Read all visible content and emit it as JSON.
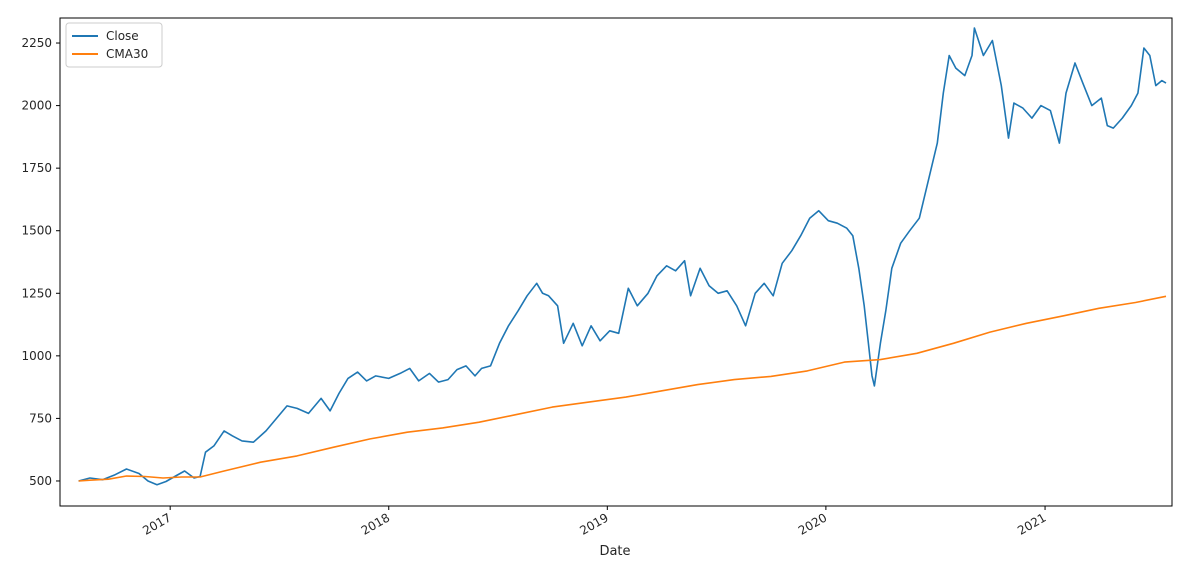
{
  "chart_data": {
    "type": "line",
    "title": "",
    "xlabel": "Date",
    "ylabel": "",
    "xlim": [
      "2016-07-01",
      "2021-08-01"
    ],
    "ylim": [
      400,
      2350
    ],
    "x_ticks": [
      "2017",
      "2018",
      "2019",
      "2020",
      "2021"
    ],
    "y_ticks": [
      500,
      750,
      1000,
      1250,
      1500,
      1750,
      2000,
      2250
    ],
    "grid": false,
    "legend": "top-left",
    "series": [
      {
        "name": "Close",
        "color": "#1f77b4",
        "points": [
          [
            "2016-08-01",
            500
          ],
          [
            "2016-08-20",
            512
          ],
          [
            "2016-09-10",
            505
          ],
          [
            "2016-10-01",
            525
          ],
          [
            "2016-10-20",
            548
          ],
          [
            "2016-11-10",
            530
          ],
          [
            "2016-11-25",
            500
          ],
          [
            "2016-12-10",
            485
          ],
          [
            "2016-12-25",
            498
          ],
          [
            "2017-01-10",
            520
          ],
          [
            "2017-01-25",
            540
          ],
          [
            "2017-02-10",
            512
          ],
          [
            "2017-02-20",
            518
          ],
          [
            "2017-03-01",
            615
          ],
          [
            "2017-03-15",
            640
          ],
          [
            "2017-04-01",
            700
          ],
          [
            "2017-04-15",
            680
          ],
          [
            "2017-05-01",
            660
          ],
          [
            "2017-05-20",
            655
          ],
          [
            "2017-06-10",
            700
          ],
          [
            "2017-07-01",
            760
          ],
          [
            "2017-07-15",
            800
          ],
          [
            "2017-08-01",
            790
          ],
          [
            "2017-08-20",
            770
          ],
          [
            "2017-09-10",
            830
          ],
          [
            "2017-09-25",
            780
          ],
          [
            "2017-10-10",
            850
          ],
          [
            "2017-10-25",
            910
          ],
          [
            "2017-11-10",
            935
          ],
          [
            "2017-11-25",
            900
          ],
          [
            "2017-12-10",
            920
          ],
          [
            "2018-01-01",
            910
          ],
          [
            "2018-01-20",
            930
          ],
          [
            "2018-02-05",
            950
          ],
          [
            "2018-02-20",
            900
          ],
          [
            "2018-03-10",
            930
          ],
          [
            "2018-03-25",
            895
          ],
          [
            "2018-04-10",
            905
          ],
          [
            "2018-04-25",
            945
          ],
          [
            "2018-05-10",
            960
          ],
          [
            "2018-05-25",
            920
          ],
          [
            "2018-06-05",
            950
          ],
          [
            "2018-06-20",
            960
          ],
          [
            "2018-07-05",
            1050
          ],
          [
            "2018-07-20",
            1120
          ],
          [
            "2018-08-05",
            1180
          ],
          [
            "2018-08-20",
            1240
          ],
          [
            "2018-09-05",
            1290
          ],
          [
            "2018-09-15",
            1250
          ],
          [
            "2018-09-25",
            1240
          ],
          [
            "2018-10-10",
            1200
          ],
          [
            "2018-10-20",
            1050
          ],
          [
            "2018-11-05",
            1130
          ],
          [
            "2018-11-20",
            1040
          ],
          [
            "2018-12-05",
            1120
          ],
          [
            "2018-12-20",
            1060
          ],
          [
            "2019-01-05",
            1100
          ],
          [
            "2019-01-20",
            1090
          ],
          [
            "2019-02-05",
            1270
          ],
          [
            "2019-02-20",
            1200
          ],
          [
            "2019-03-10",
            1250
          ],
          [
            "2019-03-25",
            1320
          ],
          [
            "2019-04-10",
            1360
          ],
          [
            "2019-04-25",
            1340
          ],
          [
            "2019-05-10",
            1380
          ],
          [
            "2019-05-20",
            1240
          ],
          [
            "2019-06-05",
            1350
          ],
          [
            "2019-06-20",
            1280
          ],
          [
            "2019-07-05",
            1250
          ],
          [
            "2019-07-20",
            1260
          ],
          [
            "2019-08-05",
            1200
          ],
          [
            "2019-08-20",
            1120
          ],
          [
            "2019-09-05",
            1250
          ],
          [
            "2019-09-20",
            1290
          ],
          [
            "2019-10-05",
            1240
          ],
          [
            "2019-10-20",
            1370
          ],
          [
            "2019-11-05",
            1420
          ],
          [
            "2019-11-20",
            1480
          ],
          [
            "2019-12-05",
            1550
          ],
          [
            "2019-12-20",
            1580
          ],
          [
            "2020-01-05",
            1540
          ],
          [
            "2020-01-20",
            1530
          ],
          [
            "2020-02-05",
            1510
          ],
          [
            "2020-02-15",
            1480
          ],
          [
            "2020-02-25",
            1350
          ],
          [
            "2020-03-05",
            1200
          ],
          [
            "2020-03-12",
            1050
          ],
          [
            "2020-03-18",
            920
          ],
          [
            "2020-03-22",
            880
          ],
          [
            "2020-04-01",
            1050
          ],
          [
            "2020-04-10",
            1180
          ],
          [
            "2020-04-20",
            1350
          ],
          [
            "2020-05-05",
            1450
          ],
          [
            "2020-05-20",
            1500
          ],
          [
            "2020-06-05",
            1550
          ],
          [
            "2020-06-20",
            1700
          ],
          [
            "2020-07-05",
            1850
          ],
          [
            "2020-07-15",
            2050
          ],
          [
            "2020-07-25",
            2200
          ],
          [
            "2020-08-05",
            2150
          ],
          [
            "2020-08-20",
            2120
          ],
          [
            "2020-09-01",
            2200
          ],
          [
            "2020-09-05",
            2310
          ],
          [
            "2020-09-20",
            2200
          ],
          [
            "2020-10-05",
            2260
          ],
          [
            "2020-10-20",
            2080
          ],
          [
            "2020-11-01",
            1870
          ],
          [
            "2020-11-10",
            2010
          ],
          [
            "2020-11-25",
            1990
          ],
          [
            "2020-12-10",
            1950
          ],
          [
            "2020-12-25",
            2000
          ],
          [
            "2021-01-10",
            1980
          ],
          [
            "2021-01-25",
            1850
          ],
          [
            "2021-02-05",
            2050
          ],
          [
            "2021-02-20",
            2170
          ],
          [
            "2021-03-05",
            2090
          ],
          [
            "2021-03-20",
            2000
          ],
          [
            "2021-04-05",
            2030
          ],
          [
            "2021-04-15",
            1920
          ],
          [
            "2021-04-25",
            1910
          ],
          [
            "2021-05-10",
            1950
          ],
          [
            "2021-05-25",
            2000
          ],
          [
            "2021-06-05",
            2050
          ],
          [
            "2021-06-15",
            2230
          ],
          [
            "2021-06-25",
            2200
          ],
          [
            "2021-07-05",
            2080
          ],
          [
            "2021-07-15",
            2100
          ],
          [
            "2021-07-22",
            2090
          ]
        ]
      },
      {
        "name": "CMA30",
        "color": "#ff7f0e",
        "points": [
          [
            "2016-08-01",
            500
          ],
          [
            "2016-08-20",
            503
          ],
          [
            "2016-09-20",
            507
          ],
          [
            "2016-10-20",
            520
          ],
          [
            "2016-11-20",
            518
          ],
          [
            "2016-12-20",
            512
          ],
          [
            "2017-01-20",
            516
          ],
          [
            "2017-02-20",
            516
          ],
          [
            "2017-04-01",
            540
          ],
          [
            "2017-06-01",
            575
          ],
          [
            "2017-08-01",
            600
          ],
          [
            "2017-10-01",
            635
          ],
          [
            "2017-12-01",
            668
          ],
          [
            "2018-02-01",
            695
          ],
          [
            "2018-04-01",
            712
          ],
          [
            "2018-06-01",
            735
          ],
          [
            "2018-08-01",
            765
          ],
          [
            "2018-10-01",
            795
          ],
          [
            "2018-12-01",
            815
          ],
          [
            "2019-02-01",
            835
          ],
          [
            "2019-04-01",
            860
          ],
          [
            "2019-06-01",
            885
          ],
          [
            "2019-08-01",
            905
          ],
          [
            "2019-10-01",
            918
          ],
          [
            "2019-12-01",
            940
          ],
          [
            "2020-02-01",
            975
          ],
          [
            "2020-04-01",
            985
          ],
          [
            "2020-06-01",
            1010
          ],
          [
            "2020-08-01",
            1050
          ],
          [
            "2020-10-01",
            1095
          ],
          [
            "2020-12-01",
            1130
          ],
          [
            "2021-02-01",
            1160
          ],
          [
            "2021-04-01",
            1190
          ],
          [
            "2021-06-01",
            1213
          ],
          [
            "2021-07-22",
            1238
          ]
        ]
      }
    ]
  }
}
